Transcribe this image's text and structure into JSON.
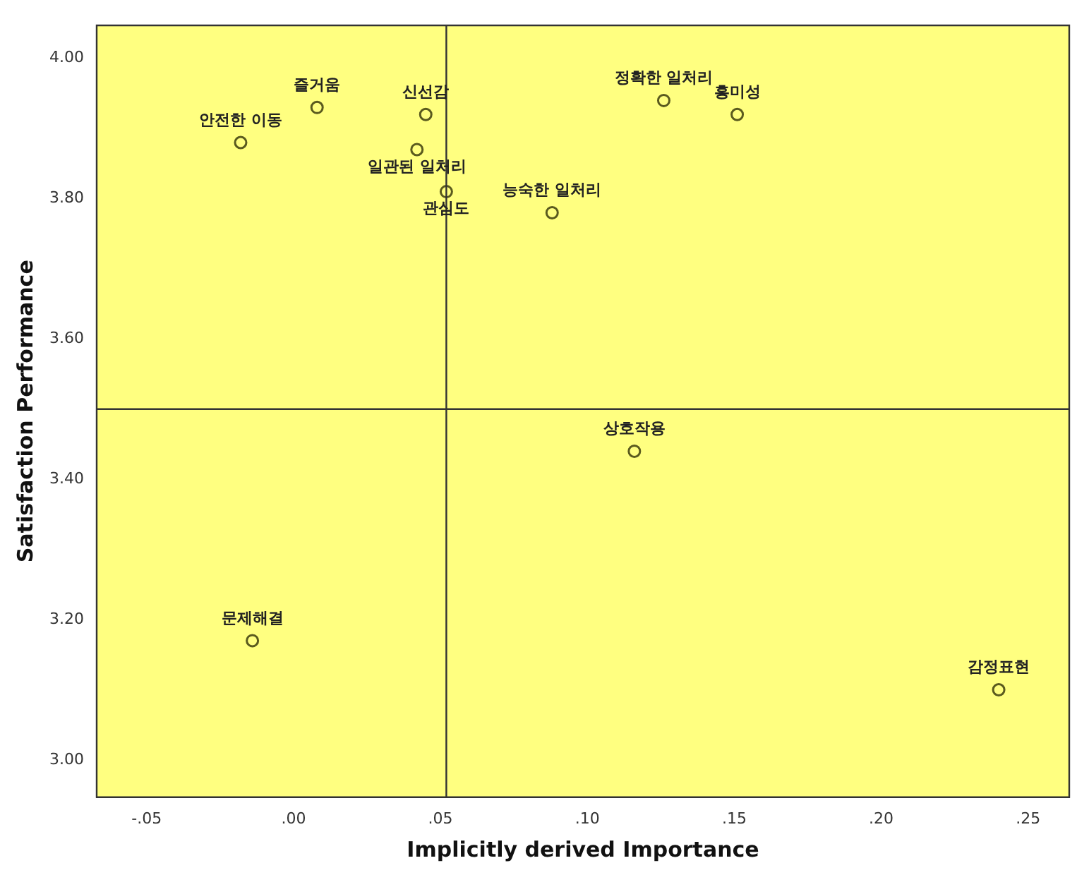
{
  "chart_data": {
    "type": "scatter",
    "xlabel": "Implicitly derived Importance",
    "ylabel": "Satisfaction Performance",
    "xlim": [
      -0.067,
      0.264
    ],
    "ylim": [
      2.947,
      4.047
    ],
    "xticks": [
      {
        "value": -0.05,
        "label": "-.05"
      },
      {
        "value": 0,
        "label": ".00"
      },
      {
        "value": 0.05,
        "label": ".05"
      },
      {
        "value": 0.1,
        "label": ".10"
      },
      {
        "value": 0.15,
        "label": ".15"
      },
      {
        "value": 0.2,
        "label": ".20"
      },
      {
        "value": 0.25,
        "label": ".25"
      }
    ],
    "yticks": [
      {
        "value": 3,
        "label": "3.00"
      },
      {
        "value": 3.2,
        "label": "3.20"
      },
      {
        "value": 3.4,
        "label": "3.40"
      },
      {
        "value": 3.6,
        "label": "3.60"
      },
      {
        "value": 3.8,
        "label": "3.80"
      },
      {
        "value": 4,
        "label": "4.00"
      }
    ],
    "series": [
      {
        "color": "#5a5a1e",
        "x": [
          0.008,
          0.045,
          0.042,
          -0.018,
          0.052,
          0.088,
          0.126,
          0.151,
          0.116,
          -0.014,
          0.24
        ],
        "values": [
          3.93,
          3.92,
          3.87,
          3.88,
          3.81,
          3.78,
          3.94,
          3.92,
          3.44,
          3.17,
          3.1
        ]
      }
    ],
    "annotations": [
      {
        "text": "즐거움",
        "x": 0.008,
        "y": 3.93
      },
      {
        "text": "신선감",
        "x": 0.045,
        "y": 3.92
      },
      {
        "text": "일관된 일처리",
        "x": 0.042,
        "y": 3.87
      },
      {
        "text": "안전한 이동",
        "x": -0.018,
        "y": 3.88
      },
      {
        "text": "관심도",
        "x": 0.052,
        "y": 3.81
      },
      {
        "text": "능숙한 일처리",
        "x": 0.088,
        "y": 3.78
      },
      {
        "text": "정확한 일처리",
        "x": 0.126,
        "y": 3.94
      },
      {
        "text": "흥미성",
        "x": 0.151,
        "y": 3.92
      },
      {
        "text": "상호작용",
        "x": 0.116,
        "y": 3.44
      },
      {
        "text": "문제해결",
        "x": -0.014,
        "y": 3.17
      },
      {
        "text": "감정표현",
        "x": 0.24,
        "y": 3.1
      }
    ],
    "ref_lines": [
      {
        "axis": "x",
        "value": 0.052,
        "color": "#333333"
      },
      {
        "axis": "y",
        "value": 3.5,
        "color": "#333333"
      }
    ],
    "marker": "circle",
    "grid": false,
    "legend": false
  }
}
